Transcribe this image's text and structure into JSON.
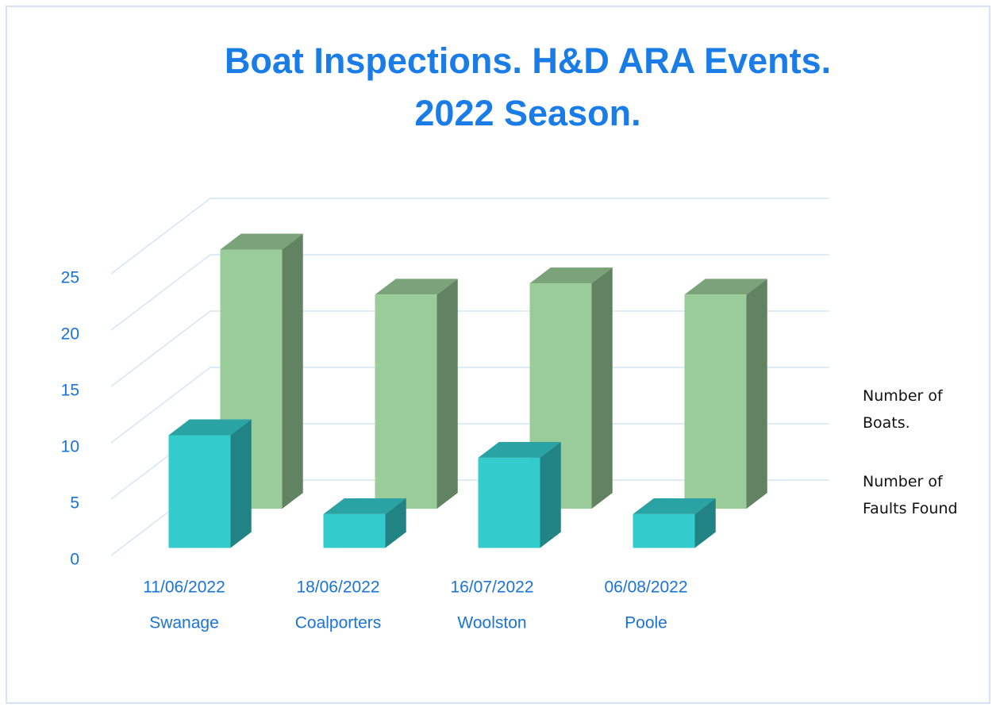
{
  "chart_data": {
    "type": "bar3d",
    "title": [
      "Boat Inspections. H&D ARA Events.",
      "2022  Season."
    ],
    "categories": [
      "11/06/2022",
      "18/06/2022",
      "16/07/2022",
      "06/08/2022"
    ],
    "locations": [
      "Swanage",
      "Coalporters",
      "Woolston",
      "Poole"
    ],
    "series": [
      {
        "name": "Number of Boats.",
        "color": "#99cc99",
        "values": [
          23,
          19,
          20,
          19
        ]
      },
      {
        "name": "Number of Faults Found",
        "color": "#33cccc",
        "values": [
          10,
          3,
          8,
          3
        ]
      }
    ],
    "ylim": [
      0,
      25
    ],
    "yticks": [
      0,
      5,
      10,
      15,
      20,
      25
    ],
    "grid": true
  }
}
